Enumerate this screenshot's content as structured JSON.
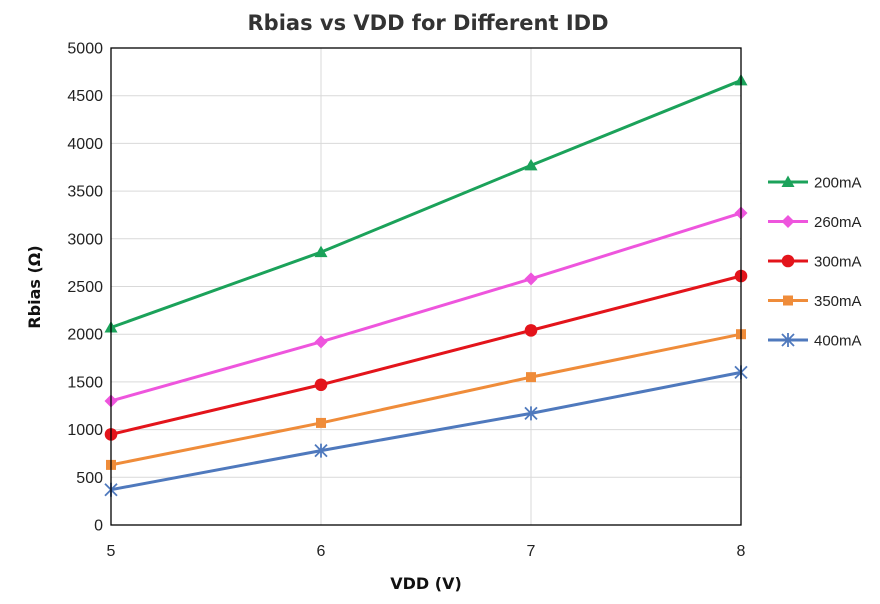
{
  "chart_data": {
    "type": "line",
    "title": "Rbias vs VDD for Different IDD",
    "xlabel": "VDD (V)",
    "ylabel": "Rbias (Ω)",
    "x": [
      5,
      6,
      7,
      8
    ],
    "x_ticks": [
      "5",
      "6",
      "7",
      "8"
    ],
    "xlim": [
      5,
      8
    ],
    "y_ticks": [
      "0",
      "500",
      "1000",
      "1500",
      "2000",
      "2500",
      "3000",
      "3500",
      "4000",
      "4500",
      "5000"
    ],
    "ylim": [
      0,
      5000
    ],
    "grid": true,
    "legend_position": "right",
    "series": [
      {
        "name": "200mA",
        "values": [
          2070,
          2860,
          3770,
          4660
        ],
        "color": "#1ba25a",
        "marker": "triangle"
      },
      {
        "name": "260mA",
        "values": [
          1300,
          1920,
          2580,
          3270
        ],
        "color": "#ee55dd",
        "marker": "diamond"
      },
      {
        "name": "300mA",
        "values": [
          950,
          1470,
          2040,
          2610
        ],
        "color": "#e3141b",
        "marker": "circle"
      },
      {
        "name": "350mA",
        "values": [
          630,
          1070,
          1550,
          2000
        ],
        "color": "#ef8c3a",
        "marker": "square"
      },
      {
        "name": "400mA",
        "values": [
          370,
          780,
          1170,
          1600
        ],
        "color": "#4f79bd",
        "marker": "star"
      }
    ]
  }
}
